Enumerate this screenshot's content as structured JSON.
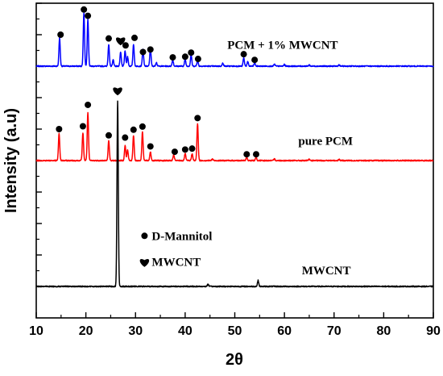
{
  "chart_data": {
    "type": "line",
    "title": "",
    "xlabel": "2θ",
    "ylabel": "Intensity (a.u)",
    "xlim": [
      10,
      90
    ],
    "xticks": [
      "10",
      "20",
      "30",
      "40",
      "50",
      "60",
      "70",
      "80",
      "90"
    ],
    "ylim": [
      0,
      100
    ],
    "grid": false,
    "legend_placement": "inside-per-curve",
    "series": [
      {
        "name": "PCM + 1% MWCNT",
        "color": "#0000ff",
        "baseline": 80,
        "peaks": [
          {
            "x": 14.7,
            "h": 9.0
          },
          {
            "x": 19.6,
            "h": 17.0
          },
          {
            "x": 20.4,
            "h": 15.0
          },
          {
            "x": 24.6,
            "h": 6.8
          },
          {
            "x": 25.5,
            "h": 2.0
          },
          {
            "x": 27.0,
            "h": 4.4
          },
          {
            "x": 27.9,
            "h": 4.8
          },
          {
            "x": 28.4,
            "h": 3.0
          },
          {
            "x": 29.6,
            "h": 7.0
          },
          {
            "x": 31.5,
            "h": 5.5
          },
          {
            "x": 33.0,
            "h": 5.8
          },
          {
            "x": 34.2,
            "h": 1.2
          },
          {
            "x": 37.5,
            "h": 2.0
          },
          {
            "x": 40.0,
            "h": 2.2
          },
          {
            "x": 41.2,
            "h": 3.6
          },
          {
            "x": 42.5,
            "h": 1.8
          },
          {
            "x": 47.6,
            "h": 1.0
          },
          {
            "x": 51.8,
            "h": 2.6
          },
          {
            "x": 52.6,
            "h": 1.4
          },
          {
            "x": 54.0,
            "h": 1.0
          },
          {
            "x": 58.0,
            "h": 0.6
          },
          {
            "x": 60.0,
            "h": 0.5
          },
          {
            "x": 65.0,
            "h": 0.4
          },
          {
            "x": 71.0,
            "h": 0.4
          }
        ]
      },
      {
        "name": "pure PCM",
        "color": "#ff0000",
        "baseline": 50,
        "peaks": [
          {
            "x": 14.6,
            "h": 8.5
          },
          {
            "x": 19.4,
            "h": 8.8
          },
          {
            "x": 20.4,
            "h": 15.2
          },
          {
            "x": 24.6,
            "h": 6.2
          },
          {
            "x": 27.9,
            "h": 4.8
          },
          {
            "x": 28.4,
            "h": 3.4
          },
          {
            "x": 29.6,
            "h": 8.0
          },
          {
            "x": 31.4,
            "h": 9.2
          },
          {
            "x": 33.0,
            "h": 2.8
          },
          {
            "x": 37.7,
            "h": 1.8
          },
          {
            "x": 40.0,
            "h": 2.2
          },
          {
            "x": 41.4,
            "h": 2.2
          },
          {
            "x": 42.5,
            "h": 11.8
          },
          {
            "x": 45.5,
            "h": 0.5
          },
          {
            "x": 52.4,
            "h": 1.0
          },
          {
            "x": 54.3,
            "h": 1.0
          },
          {
            "x": 58.0,
            "h": 0.5
          },
          {
            "x": 65.0,
            "h": 0.4
          },
          {
            "x": 71.0,
            "h": 0.4
          }
        ]
      },
      {
        "name": "MWCNT",
        "color": "#000000",
        "baseline": 10,
        "peaks": [
          {
            "x": 26.4,
            "h": 59.0
          },
          {
            "x": 44.6,
            "h": 0.7
          },
          {
            "x": 54.7,
            "h": 1.9
          }
        ]
      }
    ],
    "markers": {
      "dot": [
        {
          "x": 14.9,
          "y": 90.0
        },
        {
          "x": 19.6,
          "y": 98.0
        },
        {
          "x": 20.4,
          "y": 96.0
        },
        {
          "x": 24.6,
          "y": 88.8
        },
        {
          "x": 28.0,
          "y": 86.6
        },
        {
          "x": 29.8,
          "y": 89.0
        },
        {
          "x": 31.5,
          "y": 84.5
        },
        {
          "x": 33.0,
          "y": 85.3
        },
        {
          "x": 37.5,
          "y": 82.8
        },
        {
          "x": 40.0,
          "y": 83.0
        },
        {
          "x": 41.2,
          "y": 84.3
        },
        {
          "x": 42.6,
          "y": 82.3
        },
        {
          "x": 51.8,
          "y": 83.8
        },
        {
          "x": 54.0,
          "y": 82.0
        },
        {
          "x": 14.6,
          "y": 60.0
        },
        {
          "x": 19.4,
          "y": 60.9
        },
        {
          "x": 20.4,
          "y": 67.7
        },
        {
          "x": 24.6,
          "y": 58.0
        },
        {
          "x": 27.9,
          "y": 57.3
        },
        {
          "x": 29.6,
          "y": 59.8
        },
        {
          "x": 31.4,
          "y": 60.8
        },
        {
          "x": 33.0,
          "y": 54.5
        },
        {
          "x": 37.9,
          "y": 52.8
        },
        {
          "x": 40.0,
          "y": 53.5
        },
        {
          "x": 41.4,
          "y": 53.8
        },
        {
          "x": 42.5,
          "y": 63.5
        },
        {
          "x": 52.4,
          "y": 52.0
        },
        {
          "x": 54.3,
          "y": 52.0
        }
      ],
      "heart": [
        {
          "x": 27.0,
          "y": 88.2
        },
        {
          "x": 26.4,
          "y": 72.3
        }
      ]
    },
    "annotations": [
      {
        "text": "PCM + 1% MWCNT",
        "x": 48.5,
        "y": 85.5
      },
      {
        "text": "pure PCM",
        "x": 62.8,
        "y": 55.0
      },
      {
        "text": "MWCNT",
        "x": 63.5,
        "y": 13.8
      },
      {
        "text": "D-Mannitol",
        "x": 31.0,
        "y": 24.8,
        "marker": "dot"
      },
      {
        "text": "MWCNT",
        "x": 31.0,
        "y": 16.5,
        "marker": "heart"
      }
    ]
  }
}
